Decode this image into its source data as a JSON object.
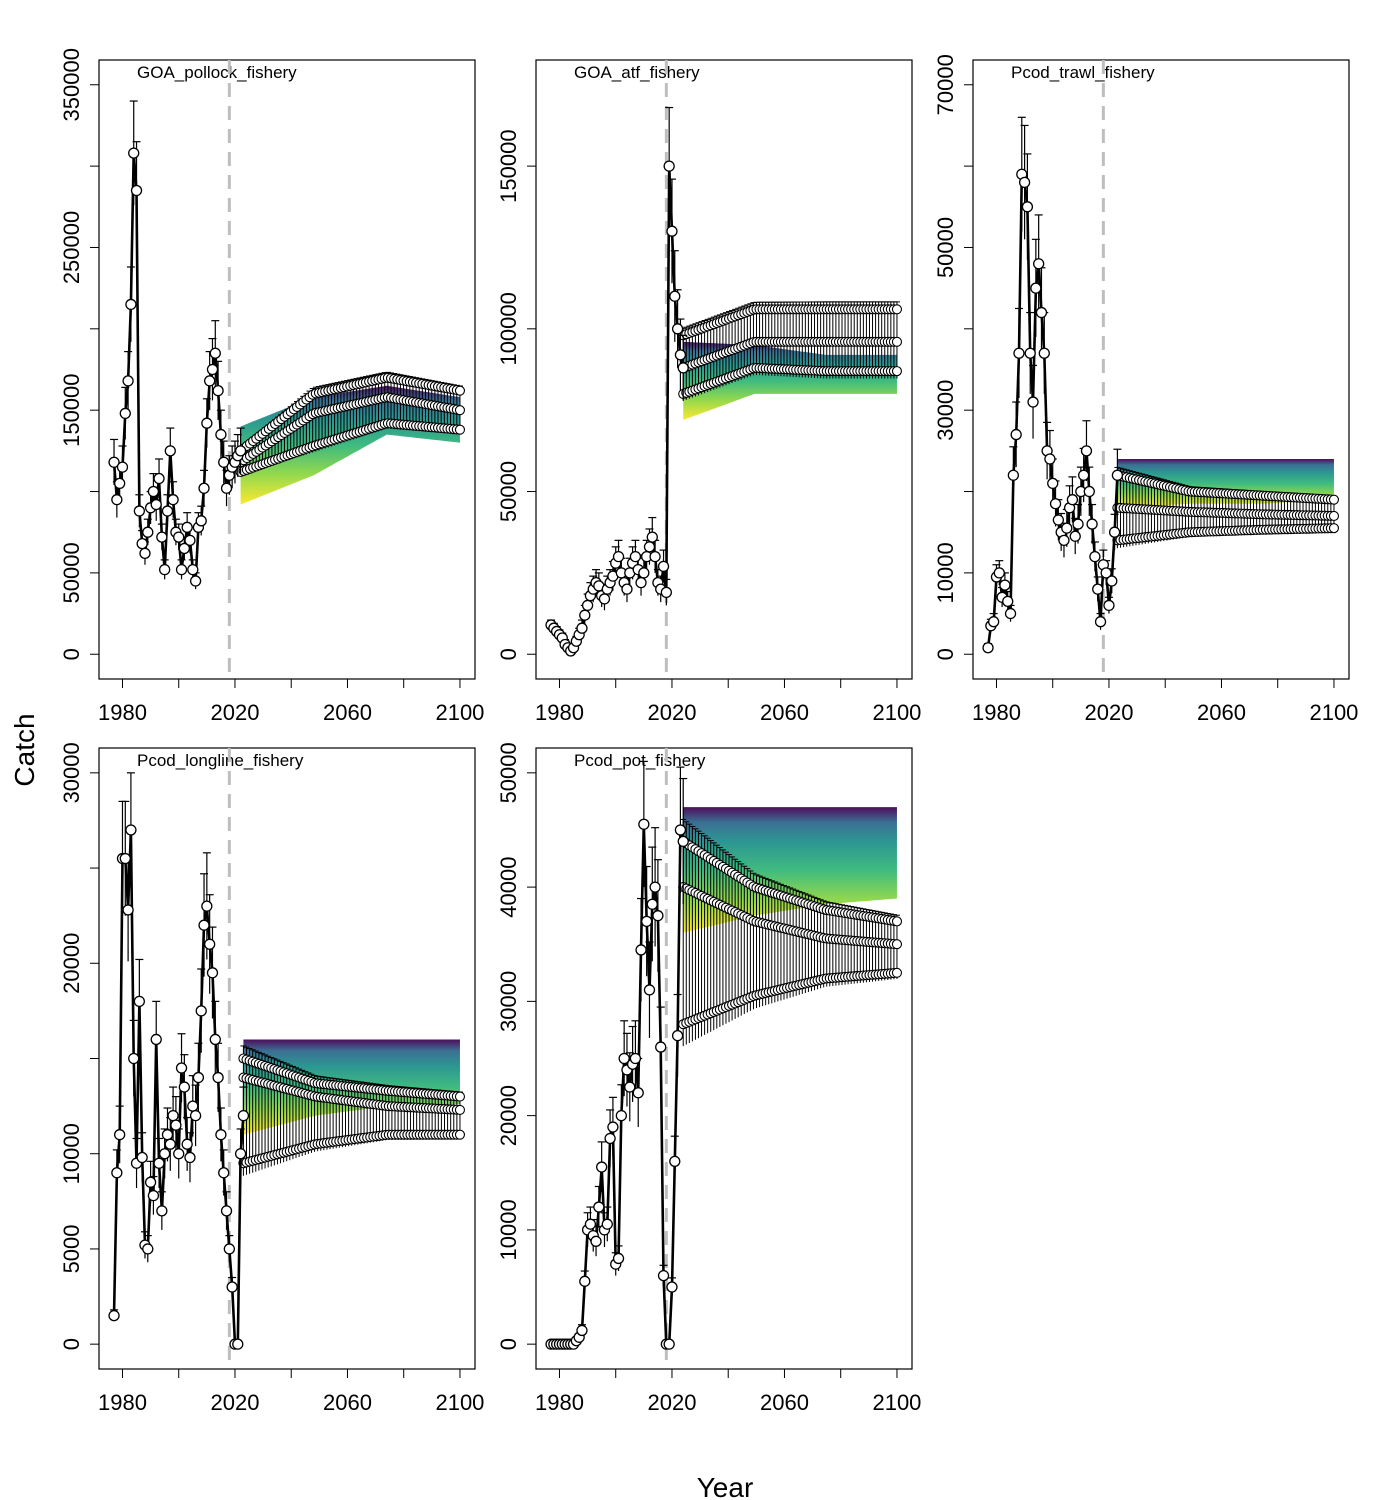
{
  "figure": {
    "xlabel": "Year",
    "ylabel": "Catch",
    "colors": {
      "observed": "#000000",
      "point_fill": "#ffffff",
      "divider": "#bebebe",
      "projection_ramp": [
        "#440154",
        "#31688e",
        "#21918c",
        "#35b779",
        "#90d743",
        "#fde725"
      ]
    }
  },
  "chart_data": [
    {
      "type": "line",
      "title": "GOA_pollock_fishery",
      "xlim": [
        1977,
        2100
      ],
      "ylim": [
        0,
        350000
      ],
      "xticks": [
        "1980",
        "2020",
        "2060",
        "2100"
      ],
      "yticks": [
        "0",
        "50000",
        "150000",
        "250000",
        "350000"
      ],
      "divider_x": 2018,
      "observed": {
        "x": [
          1977,
          1978,
          1979,
          1980,
          1981,
          1982,
          1983,
          1984,
          1985,
          1986,
          1987,
          1988,
          1989,
          1990,
          1991,
          1992,
          1993,
          1994,
          1995,
          1996,
          1997,
          1998,
          1999,
          2000,
          2001,
          2002,
          2003,
          2004,
          2005,
          2006,
          2007,
          2008,
          2009,
          2010,
          2011,
          2012,
          2013,
          2014,
          2015,
          2016,
          2017,
          2018,
          2019,
          2020,
          2021,
          2022
        ],
        "y": [
          118000,
          95000,
          105000,
          115000,
          148000,
          168000,
          215000,
          308000,
          285000,
          88000,
          68000,
          62000,
          75000,
          90000,
          100000,
          92000,
          108000,
          72000,
          52000,
          88000,
          125000,
          95000,
          75000,
          72000,
          52000,
          65000,
          78000,
          70000,
          52000,
          45000,
          78000,
          82000,
          102000,
          142000,
          168000,
          175000,
          185000,
          162000,
          135000,
          118000,
          102000,
          110000,
          115000,
          118000,
          122000,
          125000
        ],
        "yerr": [
          14000,
          11000,
          12000,
          13000,
          16000,
          18000,
          23000,
          32000,
          30000,
          10000,
          8000,
          7000,
          8000,
          10000,
          11000,
          10000,
          12000,
          8000,
          6000,
          10000,
          14000,
          11000,
          8000,
          8000,
          6000,
          7000,
          9000,
          8000,
          6000,
          5000,
          9000,
          9000,
          11000,
          15000,
          18000,
          19000,
          20000,
          18000,
          15000,
          13000,
          11000,
          12000,
          13000,
          13000,
          13000,
          14000
        ]
      },
      "projection": {
        "x0": 2022,
        "x1": 2100,
        "upper": [
          125000,
          160000,
          170000,
          162000
        ],
        "center": [
          118000,
          148000,
          158000,
          150000
        ],
        "lower": [
          112000,
          128000,
          142000,
          138000
        ],
        "fan_top": [
          140000,
          158000,
          165000,
          158000
        ],
        "fan_bottom": [
          92000,
          110000,
          135000,
          130000
        ]
      }
    },
    {
      "type": "line",
      "title": "GOA_atf_fishery",
      "xlim": [
        1977,
        2100
      ],
      "ylim": [
        0,
        175000
      ],
      "xticks": [
        "1980",
        "2020",
        "2060",
        "2100"
      ],
      "yticks": [
        "0",
        "50000",
        "100000",
        "150000"
      ],
      "divider_x": 2018,
      "observed": {
        "x": [
          1977,
          1978,
          1979,
          1980,
          1981,
          1982,
          1983,
          1984,
          1985,
          1986,
          1987,
          1988,
          1989,
          1990,
          1991,
          1992,
          1993,
          1994,
          1995,
          1996,
          1997,
          1998,
          1999,
          2000,
          2001,
          2002,
          2003,
          2004,
          2005,
          2006,
          2007,
          2008,
          2009,
          2010,
          2011,
          2012,
          2013,
          2014,
          2015,
          2016,
          2017,
          2018,
          2019,
          2020,
          2021,
          2022,
          2023,
          2024
        ],
        "y": [
          9000,
          8000,
          7000,
          6000,
          5000,
          3000,
          2000,
          1000,
          2000,
          4000,
          6000,
          8000,
          12000,
          15000,
          18000,
          20000,
          22000,
          21000,
          18000,
          17000,
          20000,
          22000,
          24000,
          28000,
          30000,
          25000,
          22000,
          20000,
          25000,
          28000,
          30000,
          26000,
          22000,
          25000,
          30000,
          33000,
          36000,
          30000,
          22000,
          20000,
          27000,
          19000,
          150000,
          130000,
          110000,
          100000,
          92000,
          88000
        ],
        "yerr": [
          1500,
          1500,
          1500,
          1500,
          1500,
          1500,
          1000,
          800,
          1000,
          1500,
          2000,
          2500,
          3000,
          3500,
          4000,
          4000,
          4000,
          4000,
          3500,
          3500,
          4000,
          4000,
          4500,
          5000,
          5000,
          4500,
          4000,
          4000,
          4500,
          5000,
          5000,
          4500,
          4000,
          4500,
          5000,
          5500,
          6000,
          5000,
          4000,
          4000,
          5000,
          4000,
          18000,
          16000,
          14000,
          12000,
          11000,
          10000
        ]
      },
      "projection": {
        "x0": 2024,
        "x1": 2100,
        "upper": [
          98000,
          106000,
          106000,
          106000
        ],
        "center": [
          88000,
          96000,
          96000,
          96000
        ],
        "lower": [
          80000,
          88000,
          87000,
          87000
        ],
        "fan_top": [
          96000,
          95000,
          92000,
          92000
        ],
        "fan_bottom": [
          72000,
          80000,
          80000,
          80000
        ]
      }
    },
    {
      "type": "line",
      "title": "Pcod_trawl_fishery",
      "xlim": [
        1977,
        2100
      ],
      "ylim": [
        0,
        70000
      ],
      "xticks": [
        "1980",
        "2020",
        "2060",
        "2100"
      ],
      "yticks": [
        "0",
        "10000",
        "30000",
        "50000",
        "70000"
      ],
      "divider_x": 2018,
      "observed": {
        "x": [
          1977,
          1978,
          1979,
          1980,
          1981,
          1982,
          1983,
          1984,
          1985,
          1986,
          1987,
          1988,
          1989,
          1990,
          1991,
          1992,
          1993,
          1994,
          1995,
          1996,
          1997,
          1998,
          1999,
          2000,
          2001,
          2002,
          2003,
          2004,
          2005,
          2006,
          2007,
          2008,
          2009,
          2010,
          2011,
          2012,
          2013,
          2014,
          2015,
          2016,
          2017,
          2018,
          2019,
          2020,
          2021,
          2022,
          2023
        ],
        "y": [
          800,
          3500,
          4000,
          9500,
          10000,
          7000,
          8500,
          6500,
          5000,
          22000,
          27000,
          37000,
          59000,
          58000,
          55000,
          37000,
          31000,
          45000,
          48000,
          42000,
          37000,
          25000,
          24000,
          21000,
          18500,
          16500,
          15000,
          14000,
          15500,
          18000,
          19000,
          14500,
          16000,
          20000,
          22000,
          25000,
          20000,
          16000,
          12000,
          8000,
          4000,
          11000,
          10000,
          6000,
          9000,
          15000,
          22000
        ],
        "yerr": [
          500,
          800,
          1000,
          1500,
          1500,
          1200,
          1500,
          1200,
          1000,
          3500,
          4000,
          5500,
          7000,
          7000,
          6500,
          5000,
          4500,
          6000,
          6000,
          5500,
          5000,
          3500,
          3500,
          3000,
          2800,
          2500,
          2300,
          2100,
          2300,
          2700,
          2800,
          2200,
          2400,
          3000,
          3300,
          3700,
          3000,
          2400,
          1800,
          1500,
          1000,
          1800,
          1500,
          1000,
          1500,
          2200,
          3200
        ]
      },
      "projection": {
        "x0": 2023,
        "x1": 2100,
        "upper": [
          22000,
          20000,
          19500,
          19000
        ],
        "center": [
          18000,
          17500,
          17200,
          17000
        ],
        "lower": [
          14000,
          15000,
          15300,
          15500
        ],
        "fan_top": [
          24000,
          24000,
          24000,
          24000
        ],
        "fan_bottom": [
          18000,
          18500,
          18500,
          19000
        ]
      }
    },
    {
      "type": "line",
      "title": "Pcod_longline_fishery",
      "xlim": [
        1977,
        2100
      ],
      "ylim": [
        0,
        30000
      ],
      "xticks": [
        "1980",
        "2020",
        "2060",
        "2100"
      ],
      "yticks": [
        "0",
        "5000",
        "10000",
        "20000",
        "30000"
      ],
      "divider_x": 2018,
      "observed": {
        "x": [
          1977,
          1978,
          1979,
          1980,
          1981,
          1982,
          1983,
          1984,
          1985,
          1986,
          1987,
          1988,
          1989,
          1990,
          1991,
          1992,
          1993,
          1994,
          1995,
          1996,
          1997,
          1998,
          1999,
          2000,
          2001,
          2002,
          2003,
          2004,
          2005,
          2006,
          2007,
          2008,
          2009,
          2010,
          2011,
          2012,
          2013,
          2014,
          2015,
          2016,
          2017,
          2018,
          2019,
          2020,
          2021,
          2022,
          2023
        ],
        "y": [
          1500,
          9000,
          11000,
          25500,
          25500,
          22800,
          27000,
          15000,
          9500,
          18000,
          9800,
          5200,
          5000,
          8500,
          7800,
          16000,
          9500,
          7000,
          10000,
          11000,
          10500,
          12000,
          11500,
          10000,
          14500,
          13500,
          10500,
          9800,
          12500,
          12000,
          14000,
          17500,
          22000,
          23000,
          21000,
          19500,
          16000,
          14000,
          11000,
          9000,
          7000,
          5000,
          3000,
          0,
          0,
          10000,
          12000
        ],
        "yerr": [
          300,
          1200,
          1500,
          3000,
          3000,
          2700,
          3000,
          2000,
          1300,
          2200,
          1300,
          700,
          700,
          1100,
          1000,
          2000,
          1300,
          1000,
          1300,
          1400,
          1400,
          1500,
          1500,
          1300,
          1800,
          1700,
          1400,
          1300,
          1600,
          1600,
          1800,
          2200,
          2700,
          2800,
          2600,
          2400,
          2000,
          1800,
          1400,
          1200,
          1000,
          700,
          500,
          0,
          0,
          1300,
          1500
        ]
      },
      "projection": {
        "x0": 2023,
        "x1": 2100,
        "upper": [
          15000,
          13700,
          13300,
          13000
        ],
        "center": [
          14000,
          13000,
          12500,
          12300
        ],
        "lower": [
          9500,
          10500,
          11000,
          11000
        ],
        "fan_top": [
          16000,
          16000,
          16000,
          16000
        ],
        "fan_bottom": [
          11000,
          12000,
          12500,
          12600
        ]
      }
    },
    {
      "type": "line",
      "title": "Pcod_pot_fishery",
      "xlim": [
        1977,
        2100
      ],
      "ylim": [
        0,
        50000
      ],
      "xticks": [
        "1980",
        "2020",
        "2060",
        "2100"
      ],
      "yticks": [
        "0",
        "10000",
        "20000",
        "30000",
        "40000",
        "50000"
      ],
      "divider_x": 2018,
      "observed": {
        "x": [
          1977,
          1978,
          1979,
          1980,
          1981,
          1982,
          1983,
          1984,
          1985,
          1986,
          1987,
          1988,
          1989,
          1990,
          1991,
          1992,
          1993,
          1994,
          1995,
          1996,
          1997,
          1998,
          1999,
          2000,
          2001,
          2002,
          2003,
          2004,
          2005,
          2006,
          2007,
          2008,
          2009,
          2010,
          2011,
          2012,
          2013,
          2014,
          2015,
          2016,
          2017,
          2018,
          2019,
          2020,
          2021,
          2022,
          2023,
          2024
        ],
        "y": [
          0,
          0,
          0,
          0,
          0,
          0,
          0,
          0,
          0,
          300,
          600,
          1200,
          5500,
          10000,
          10500,
          9500,
          9000,
          12000,
          15500,
          10000,
          10500,
          18000,
          19000,
          7000,
          7500,
          20000,
          25000,
          24000,
          22500,
          24500,
          25000,
          22000,
          34500,
          45500,
          37000,
          31000,
          38500,
          40000,
          37500,
          26000,
          6000,
          0,
          0,
          5000,
          16000,
          27000,
          45000,
          44000
        ],
        "yerr": [
          0,
          0,
          0,
          0,
          0,
          0,
          0,
          0,
          0,
          200,
          300,
          500,
          900,
          1500,
          1500,
          1400,
          1300,
          1800,
          2200,
          1500,
          1500,
          2500,
          2600,
          1000,
          1100,
          2700,
          3300,
          3200,
          3000,
          3300,
          3300,
          3000,
          4500,
          5500,
          4800,
          4200,
          5000,
          5200,
          4900,
          3500,
          900,
          0,
          0,
          800,
          2200,
          3600,
          5500,
          5500
        ]
      },
      "projection": {
        "x0": 2024,
        "x1": 2100,
        "upper": [
          44000,
          40000,
          38000,
          37000
        ],
        "center": [
          40000,
          37000,
          35500,
          35000
        ],
        "lower": [
          28000,
          30500,
          32000,
          32500
        ],
        "fan_top": [
          47000,
          47000,
          47000,
          47000
        ],
        "fan_bottom": [
          36000,
          37500,
          38500,
          39000
        ]
      }
    }
  ]
}
